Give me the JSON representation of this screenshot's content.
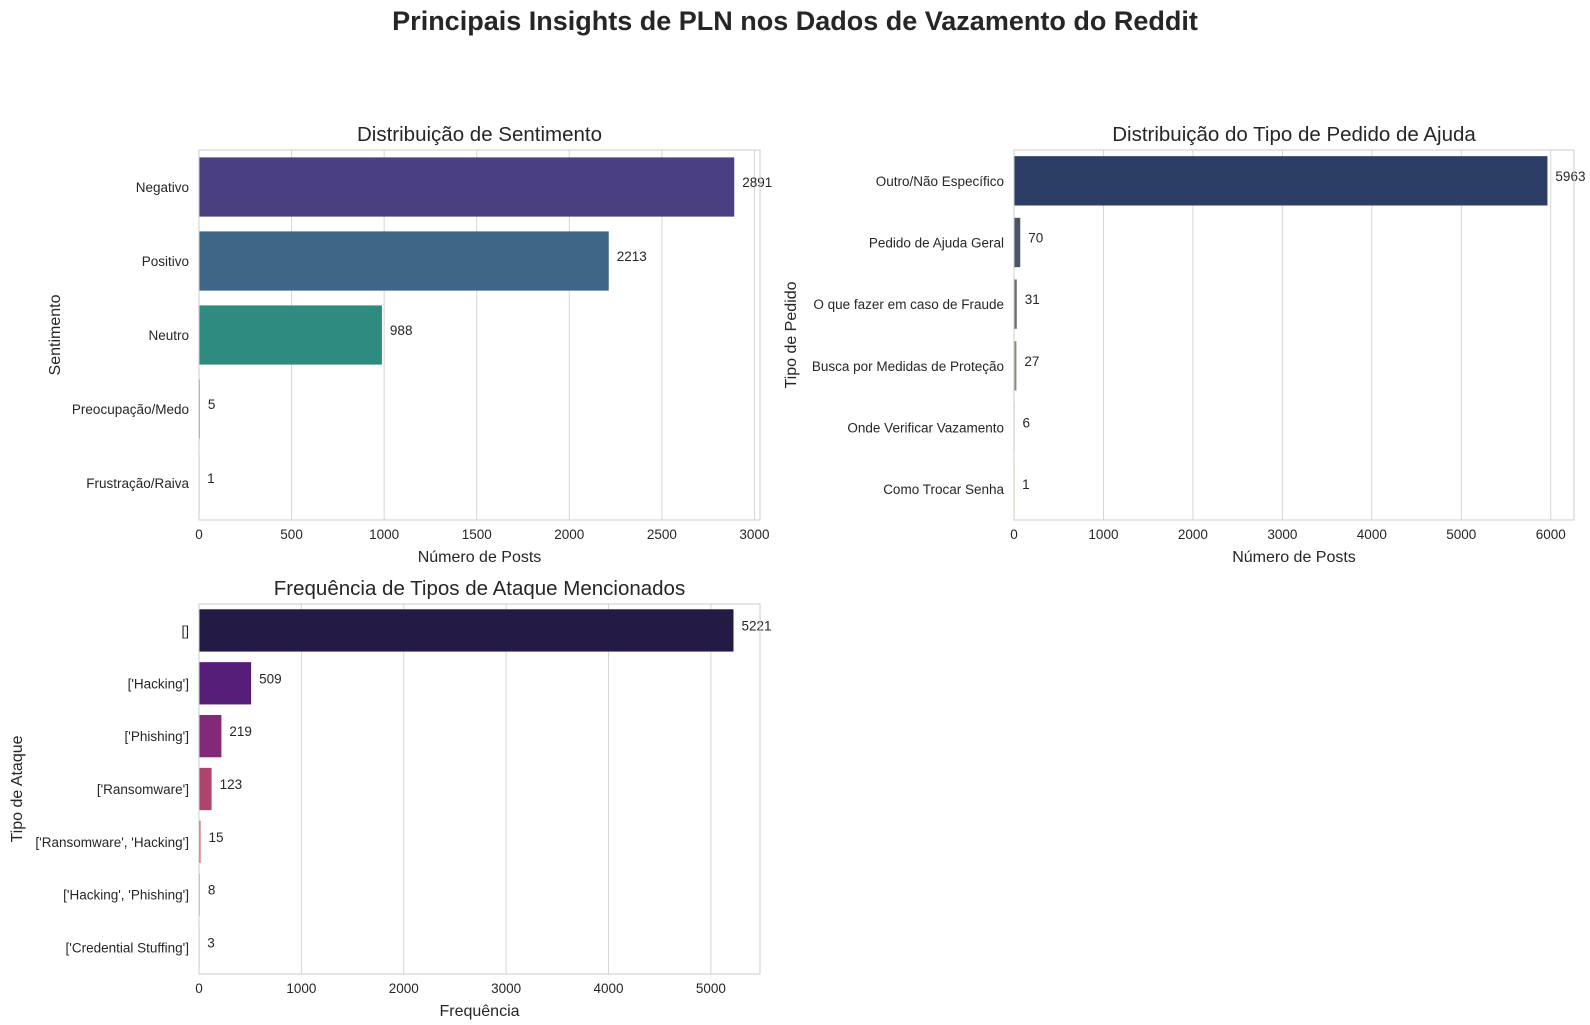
{
  "figure": {
    "title": "Principais Insights de PLN nos Dados de Vazamento do Reddit"
  },
  "chart_data": [
    {
      "type": "bar",
      "orientation": "horizontal",
      "title": "Distribuição de Sentimento",
      "xlabel": "Número de Posts",
      "ylabel": "Sentimento",
      "categories": [
        "Negativo",
        "Positivo",
        "Neutro",
        "Preocupação/Medo",
        "Frustração/Raiva"
      ],
      "values": [
        2891,
        2213,
        988,
        5,
        1
      ],
      "data_labels": [
        "2891",
        "2213",
        "988",
        "5",
        "1"
      ],
      "colors": [
        "#4a3f80",
        "#3d6785",
        "#2e8b80",
        "#49b27a",
        "#9cd64c"
      ],
      "xlim": [
        0,
        3030
      ],
      "xticks": [
        0,
        500,
        1000,
        1500,
        2000,
        2500,
        3000
      ],
      "xtick_labels": [
        "0",
        "500",
        "1000",
        "1500",
        "2000",
        "2500",
        "3000"
      ],
      "grid": "vertical"
    },
    {
      "type": "bar",
      "orientation": "horizontal",
      "title": "Distribuição do Tipo de Pedido de Ajuda",
      "xlabel": "Número de Posts",
      "ylabel": "Tipo de Pedido",
      "categories": [
        "Outro/Não Específico",
        "Pedido de Ajuda Geral",
        "O que fazer em caso de Fraude",
        "Busca por Medidas de Proteção",
        "Onde Verificar Vazamento",
        "Como Trocar Senha"
      ],
      "values": [
        5963,
        70,
        31,
        27,
        6,
        1
      ],
      "data_labels": [
        "5963",
        "70",
        "31",
        "27",
        "6",
        "1"
      ],
      "colors": [
        "#2c3e66",
        "#4c5566",
        "#6e7070",
        "#8e8b78",
        "#b3a877",
        "#e0c95a"
      ],
      "xlim": [
        0,
        6260
      ],
      "xticks": [
        0,
        1000,
        2000,
        3000,
        4000,
        5000,
        6000
      ],
      "xtick_labels": [
        "0",
        "1000",
        "2000",
        "3000",
        "4000",
        "5000",
        "6000"
      ],
      "grid": "vertical"
    },
    {
      "type": "bar",
      "orientation": "horizontal",
      "title": "Frequência de Tipos de Ataque Mencionados",
      "xlabel": "Frequência",
      "ylabel": "Tipo de Ataque",
      "categories": [
        "[]",
        "['Hacking']",
        "['Phishing']",
        "['Ransomware']",
        "['Ransomware', 'Hacking']",
        "['Hacking', 'Phishing']",
        "['Credential Stuffing']"
      ],
      "values": [
        5221,
        509,
        219,
        123,
        15,
        8,
        3
      ],
      "data_labels": [
        "5221",
        "509",
        "219",
        "123",
        "15",
        "8",
        "3"
      ],
      "colors": [
        "#231a45",
        "#561d79",
        "#822a78",
        "#b0426e",
        "#d9585a",
        "#f07d57",
        "#f9a982"
      ],
      "xlim": [
        0,
        5480
      ],
      "xticks": [
        0,
        1000,
        2000,
        3000,
        4000,
        5000
      ],
      "xtick_labels": [
        "0",
        "1000",
        "2000",
        "3000",
        "4000",
        "5000"
      ],
      "grid": "vertical"
    }
  ]
}
